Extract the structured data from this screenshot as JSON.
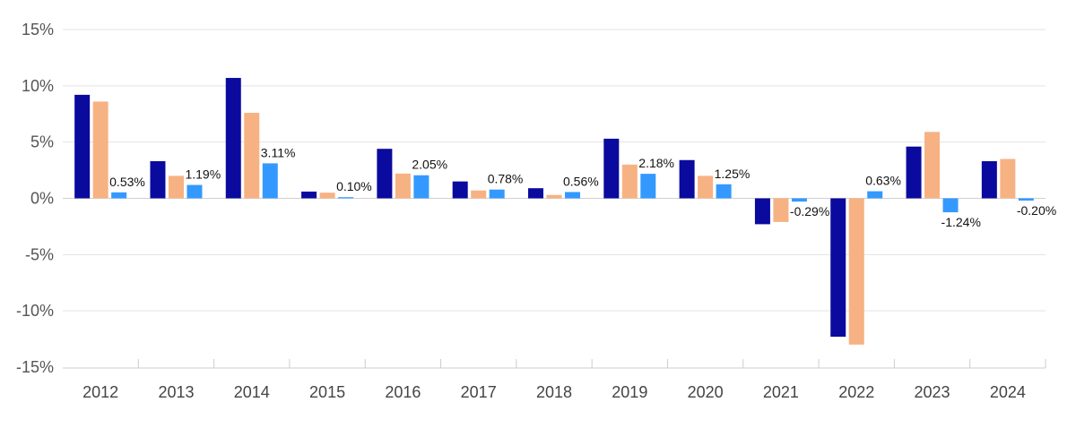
{
  "chart_data": {
    "type": "bar",
    "categories": [
      "2012",
      "2013",
      "2014",
      "2015",
      "2016",
      "2017",
      "2018",
      "2019",
      "2020",
      "2021",
      "2022",
      "2023",
      "2024"
    ],
    "series": [
      {
        "color": "#0a0a9e",
        "values": [
          9.2,
          3.3,
          10.7,
          0.6,
          4.4,
          1.5,
          0.9,
          5.3,
          3.4,
          -2.3,
          -12.3,
          4.6,
          3.3
        ]
      },
      {
        "color": "#f7b283",
        "values": [
          8.6,
          2.0,
          7.6,
          0.5,
          2.2,
          0.7,
          0.3,
          3.0,
          2.0,
          -2.1,
          -13.0,
          5.9,
          3.5
        ]
      },
      {
        "color": "#3399ff",
        "values": [
          0.53,
          1.19,
          3.11,
          0.1,
          2.05,
          0.78,
          0.56,
          2.18,
          1.25,
          -0.29,
          0.63,
          -1.24,
          -0.2
        ],
        "labels": [
          "0.53%",
          "1.19%",
          "3.11%",
          "0.10%",
          "2.05%",
          "0.78%",
          "0.56%",
          "2.18%",
          "1.25%",
          "-0.29%",
          "0.63%",
          "-1.24%",
          "-0.20%"
        ]
      }
    ],
    "yticks": [
      15,
      10,
      5,
      0,
      -5,
      -10,
      -15
    ],
    "ytick_labels": [
      "15%",
      "10%",
      "5%",
      "0%",
      "-5%",
      "-10%",
      "-15%"
    ],
    "ylim": [
      -15,
      15
    ],
    "grid": true
  }
}
